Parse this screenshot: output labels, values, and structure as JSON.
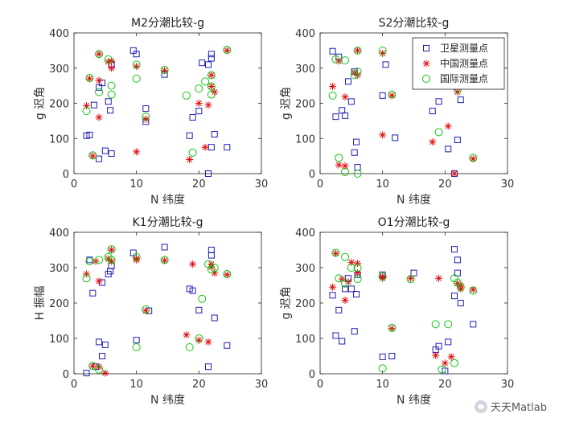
{
  "watermark": {
    "text": "天天Matlab",
    "icon": "wechat-icon"
  },
  "legend": {
    "location": "top-right",
    "entries": [
      "卫星测量点",
      "中国测量点",
      "国际测量点"
    ]
  },
  "colors": {
    "satellite": "#1f1fb5",
    "china": "#e01010",
    "intl": "#12c412",
    "axis": "#222222"
  },
  "chart_data": [
    {
      "type": "scatter",
      "title": "M2分潮比较-g",
      "xlabel": "N 纬度",
      "ylabel": "g 迟角",
      "xlim": [
        0,
        30
      ],
      "ylim": [
        0,
        400
      ],
      "xticks": [
        "0",
        "10",
        "20",
        "30"
      ],
      "yticks": [
        "0",
        "100",
        "200",
        "300",
        "400"
      ],
      "series": [
        {
          "name": "卫星测量点",
          "marker": "square",
          "points": [
            [
              2,
              108
            ],
            [
              2.5,
              110
            ],
            [
              3.2,
              195
            ],
            [
              4,
              245
            ],
            [
              4.5,
              258
            ],
            [
              4,
              42
            ],
            [
              5,
              65
            ],
            [
              6,
              57
            ],
            [
              5.5,
              205
            ],
            [
              5.8,
              180
            ],
            [
              6,
              310
            ],
            [
              9.5,
              350
            ],
            [
              10,
              340
            ],
            [
              11.5,
              185
            ],
            [
              11.5,
              148
            ],
            [
              14.5,
              282
            ],
            [
              18.5,
              108
            ],
            [
              19,
              160
            ],
            [
              20,
              178
            ],
            [
              20.5,
              315
            ],
            [
              21.5,
              310
            ],
            [
              22,
              340
            ],
            [
              22,
              328
            ],
            [
              22.5,
              112
            ],
            [
              22,
              75
            ],
            [
              24.5,
              75
            ],
            [
              21.5,
              0
            ]
          ]
        },
        {
          "name": "中国测量点",
          "marker": "asterisk",
          "points": [
            [
              4,
              340
            ],
            [
              2,
              193
            ],
            [
              2.5,
              270
            ],
            [
              4,
              265
            ],
            [
              4,
              160
            ],
            [
              5.5,
              318
            ],
            [
              6,
              320
            ],
            [
              6,
              300
            ],
            [
              10,
              305
            ],
            [
              10,
              62
            ],
            [
              11.5,
              155
            ],
            [
              14.5,
              293
            ],
            [
              18.5,
              40
            ],
            [
              21,
              75
            ],
            [
              20,
              200
            ],
            [
              21.5,
              195
            ],
            [
              22,
              280
            ],
            [
              22,
              248
            ],
            [
              22.5,
              232
            ],
            [
              24.5,
              350
            ],
            [
              3,
              50
            ]
          ]
        },
        {
          "name": "国际测量点",
          "marker": "circle",
          "points": [
            [
              2,
              178
            ],
            [
              2.5,
              272
            ],
            [
              3,
              52
            ],
            [
              4,
              340
            ],
            [
              4,
              232
            ],
            [
              5.5,
              325
            ],
            [
              6,
              250
            ],
            [
              6,
              225
            ],
            [
              10,
              310
            ],
            [
              10,
              270
            ],
            [
              11.5,
              162
            ],
            [
              14.5,
              295
            ],
            [
              18,
              222
            ],
            [
              19,
              60
            ],
            [
              20,
              242
            ],
            [
              21,
              262
            ],
            [
              22,
              280
            ],
            [
              22,
              248
            ],
            [
              22,
              225
            ],
            [
              24.5,
              352
            ]
          ]
        }
      ]
    },
    {
      "type": "scatter",
      "title": "S2分潮比较-g",
      "xlabel": "N 纬度",
      "ylabel": "g 迟角",
      "xlim": [
        0,
        30
      ],
      "ylim": [
        0,
        400
      ],
      "xticks": [
        "0",
        "10",
        "20",
        "30"
      ],
      "yticks": [
        "0",
        "100",
        "200",
        "300",
        "400"
      ],
      "series": [
        {
          "name": "卫星测量点",
          "marker": "square",
          "points": [
            [
              2,
              348
            ],
            [
              3,
              332
            ],
            [
              2.5,
              162
            ],
            [
              3.5,
              180
            ],
            [
              4,
              165
            ],
            [
              4.5,
              262
            ],
            [
              5,
              205
            ],
            [
              5.5,
              60
            ],
            [
              5.8,
              90
            ],
            [
              6,
              18
            ],
            [
              5.5,
              290
            ],
            [
              10,
              222
            ],
            [
              10.5,
              310
            ],
            [
              12,
              102
            ],
            [
              18,
              178
            ],
            [
              19,
              205
            ],
            [
              20.5,
              70
            ],
            [
              22,
              96
            ],
            [
              22.5,
              210
            ],
            [
              21.5,
              0
            ]
          ]
        },
        {
          "name": "中国测量点",
          "marker": "asterisk",
          "points": [
            [
              2,
              248
            ],
            [
              3,
              320
            ],
            [
              3,
              25
            ],
            [
              4,
              22
            ],
            [
              4,
              218
            ],
            [
              5.5,
              288
            ],
            [
              6,
              350
            ],
            [
              6,
              280
            ],
            [
              10,
              342
            ],
            [
              10,
              110
            ],
            [
              11.5,
              222
            ],
            [
              18,
              90
            ],
            [
              20.5,
              135
            ],
            [
              21.5,
              0
            ],
            [
              22,
              232
            ],
            [
              24.5,
              42
            ]
          ]
        },
        {
          "name": "国际测量点",
          "marker": "circle",
          "points": [
            [
              2,
              222
            ],
            [
              2.5,
              325
            ],
            [
              3,
              45
            ],
            [
              4,
              5
            ],
            [
              4,
              322
            ],
            [
              5.5,
              280
            ],
            [
              6,
              350
            ],
            [
              6,
              290
            ],
            [
              6,
              0
            ],
            [
              10,
              350
            ],
            [
              11.5,
              225
            ],
            [
              19,
              118
            ],
            [
              22,
              240
            ],
            [
              24.5,
              45
            ]
          ]
        }
      ]
    },
    {
      "type": "scatter",
      "title": "K1分潮比较-g",
      "xlabel": "N 纬度",
      "ylabel": "H 振幅",
      "xlim": [
        0,
        30
      ],
      "ylim": [
        0,
        400
      ],
      "xticks": [
        "0",
        "10",
        "20",
        "30"
      ],
      "yticks": [
        "0",
        "100",
        "200",
        "300",
        "400"
      ],
      "series": [
        {
          "name": "卫星测量点",
          "marker": "square",
          "points": [
            [
              2,
              2
            ],
            [
              2.5,
              322
            ],
            [
              3,
              228
            ],
            [
              3.5,
              20
            ],
            [
              4,
              90
            ],
            [
              4.5,
              258
            ],
            [
              4.5,
              50
            ],
            [
              5,
              82
            ],
            [
              5.5,
              282
            ],
            [
              5.8,
              290
            ],
            [
              6,
              305
            ],
            [
              9.5,
              342
            ],
            [
              10,
              95
            ],
            [
              12,
              178
            ],
            [
              14.5,
              358
            ],
            [
              18.5,
              240
            ],
            [
              19,
              235
            ],
            [
              20,
              180
            ],
            [
              21.5,
              20
            ],
            [
              22,
              335
            ],
            [
              22,
              350
            ],
            [
              22.5,
              158
            ],
            [
              24.5,
              80
            ]
          ]
        },
        {
          "name": "中国测量点",
          "marker": "asterisk",
          "points": [
            [
              2,
              282
            ],
            [
              3,
              22
            ],
            [
              4,
              20
            ],
            [
              4,
              262
            ],
            [
              5,
              2
            ],
            [
              5.5,
              325
            ],
            [
              6,
              350
            ],
            [
              6,
              318
            ],
            [
              10,
              325
            ],
            [
              10,
              322
            ],
            [
              11.5,
              178
            ],
            [
              14.5,
              320
            ],
            [
              18,
              110
            ],
            [
              19,
              310
            ],
            [
              20,
              95
            ],
            [
              21.5,
              90
            ],
            [
              22,
              310
            ],
            [
              22,
              302
            ],
            [
              22.5,
              285
            ],
            [
              24.5,
              280
            ],
            [
              3.5,
              318
            ]
          ]
        },
        {
          "name": "国际测量点",
          "marker": "circle",
          "points": [
            [
              2,
              270
            ],
            [
              2.5,
              318
            ],
            [
              3,
              22
            ],
            [
              4,
              12
            ],
            [
              4,
              322
            ],
            [
              5.5,
              330
            ],
            [
              6,
              352
            ],
            [
              6,
              322
            ],
            [
              10,
              330
            ],
            [
              10,
              75
            ],
            [
              11.5,
              182
            ],
            [
              14.5,
              322
            ],
            [
              18.5,
              75
            ],
            [
              20.5,
              212
            ],
            [
              21.5,
              310
            ],
            [
              22,
              295
            ],
            [
              22.5,
              300
            ],
            [
              24.5,
              282
            ],
            [
              20,
              100
            ]
          ]
        }
      ]
    },
    {
      "type": "scatter",
      "title": "O1分潮比较-g",
      "xlabel": "N 纬度",
      "ylabel": "g 迟角",
      "xlim": [
        0,
        30
      ],
      "ylim": [
        0,
        400
      ],
      "xticks": [
        "0",
        "10",
        "20",
        "30"
      ],
      "yticks": [
        "0",
        "100",
        "200",
        "300",
        "400"
      ],
      "series": [
        {
          "name": "卫星测量点",
          "marker": "square",
          "points": [
            [
              2,
              222
            ],
            [
              2.5,
              108
            ],
            [
              3,
              180
            ],
            [
              3.5,
              92
            ],
            [
              4,
              240
            ],
            [
              4.5,
              270
            ],
            [
              5,
              240
            ],
            [
              5.5,
              120
            ],
            [
              5.8,
              225
            ],
            [
              6,
              280
            ],
            [
              10,
              280
            ],
            [
              10,
              48
            ],
            [
              11.5,
              50
            ],
            [
              15,
              285
            ],
            [
              18.5,
              68
            ],
            [
              19,
              78
            ],
            [
              20,
              8
            ],
            [
              20.5,
              90
            ],
            [
              21.5,
              352
            ],
            [
              22,
              322
            ],
            [
              22,
              285
            ],
            [
              22.5,
              200
            ],
            [
              21.5,
              220
            ],
            [
              24.5,
              140
            ]
          ]
        },
        {
          "name": "中国测量点",
          "marker": "asterisk",
          "points": [
            [
              2,
              245
            ],
            [
              2.5,
              340
            ],
            [
              3.5,
              268
            ],
            [
              4,
              208
            ],
            [
              4.5,
              260
            ],
            [
              5,
              315
            ],
            [
              6,
              312
            ],
            [
              6,
              285
            ],
            [
              10,
              275
            ],
            [
              10,
              270
            ],
            [
              11.5,
              128
            ],
            [
              14.5,
              270
            ],
            [
              18.5,
              52
            ],
            [
              19,
              270
            ],
            [
              20,
              30
            ],
            [
              21,
              48
            ],
            [
              22,
              255
            ],
            [
              22.5,
              250
            ],
            [
              22.5,
              240
            ],
            [
              24.5,
              238
            ]
          ]
        },
        {
          "name": "国际测量点",
          "marker": "circle",
          "points": [
            [
              2.5,
              342
            ],
            [
              3,
              270
            ],
            [
              4,
              330
            ],
            [
              4,
              255
            ],
            [
              5,
              300
            ],
            [
              6,
              300
            ],
            [
              6,
              268
            ],
            [
              10,
              275
            ],
            [
              10,
              15
            ],
            [
              11.5,
              130
            ],
            [
              14.5,
              268
            ],
            [
              18.5,
              140
            ],
            [
              19.5,
              12
            ],
            [
              20.5,
              140
            ],
            [
              21.5,
              30
            ],
            [
              22,
              258
            ],
            [
              22.5,
              245
            ],
            [
              24.5,
              235
            ],
            [
              21.5,
              270
            ]
          ]
        }
      ]
    }
  ]
}
